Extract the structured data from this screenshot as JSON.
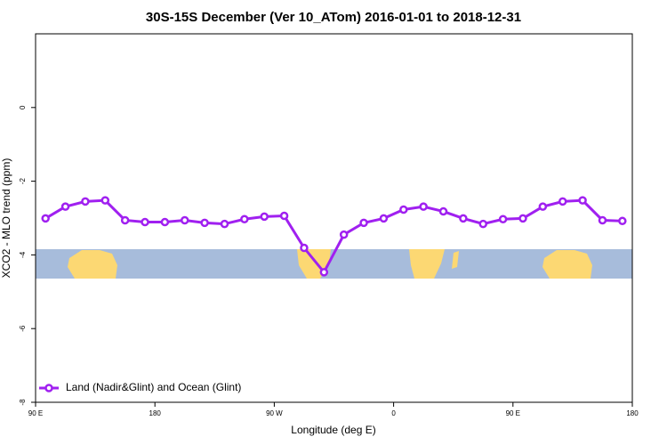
{
  "chart_data": {
    "type": "line",
    "title": "30S-15S December (Ver 10_ATom)   2016-01-01 to 2018-12-31",
    "xlabel": "Longitude (deg E)",
    "ylabel": "XCO2 - MLO trend (ppm)",
    "x": [
      97.5,
      112.5,
      127.5,
      142.5,
      157.5,
      172.5,
      187.5,
      202.5,
      217.5,
      232.5,
      247.5,
      262.5,
      277.5,
      292.5,
      307.5,
      322.5,
      337.5,
      352.5,
      367.5,
      382.5,
      397.5,
      412.5,
      427.5,
      442.5,
      457.5,
      472.5,
      487.5,
      502.5,
      517.5,
      532.5
    ],
    "series": [
      {
        "name": "Land (Nadir&Glint) and Ocean (Glint)",
        "color": "#a020f0",
        "values": [
          -3.01,
          -2.69,
          -2.55,
          -2.52,
          -3.06,
          -3.11,
          -3.11,
          -3.06,
          -3.13,
          -3.16,
          -3.03,
          -2.96,
          -2.94,
          -3.81,
          -4.47,
          -3.45,
          -3.13,
          -3.01,
          -2.77,
          -2.69,
          -2.82,
          -3.01,
          -3.16,
          -3.03,
          -3.01,
          -2.69,
          -2.55,
          -2.52,
          -3.06,
          -3.08
        ]
      }
    ],
    "xlim": [
      90,
      540
    ],
    "xticks": [
      {
        "value": 90,
        "label": "90 E"
      },
      180,
      {
        "value": 270,
        "label": "90 W"
      },
      {
        "value": 360,
        "label": "0"
      },
      {
        "value": 450,
        "label": "90 E"
      },
      {
        "value": 540,
        "label": "180"
      }
    ],
    "ylim": [
      -8,
      2
    ],
    "yticks": [
      -8,
      -6,
      -4,
      -2,
      0
    ],
    "legend": "bottom-left"
  }
}
